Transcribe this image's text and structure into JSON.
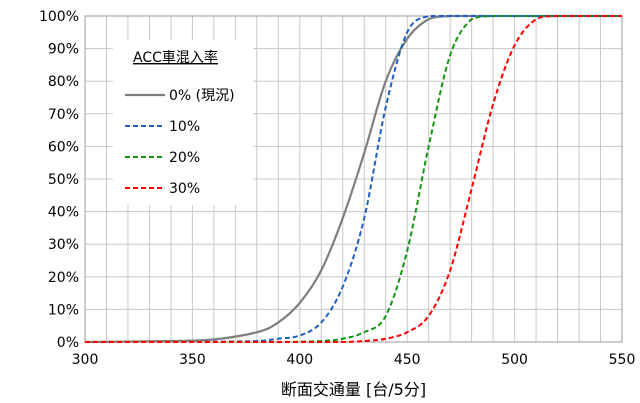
{
  "chart_data": {
    "type": "line",
    "title": "",
    "xlabel": "断面交通量 [台/5分]",
    "ylabel": "",
    "xlim": [
      300,
      550
    ],
    "ylim": [
      0,
      100
    ],
    "xticks": [
      "300",
      "350",
      "400",
      "450",
      "500",
      "550"
    ],
    "yticks": [
      "0%",
      "10%",
      "20%",
      "30%",
      "40%",
      "50%",
      "60%",
      "70%",
      "80%",
      "90%",
      "100%"
    ],
    "grid": true,
    "legend": {
      "title": "ACC車混入率",
      "position": "top-left"
    },
    "x": [
      300,
      340,
      360,
      380,
      390,
      400,
      410,
      420,
      430,
      440,
      450,
      460,
      470,
      480,
      490,
      500,
      510,
      520,
      550
    ],
    "series": [
      {
        "name": "0% (現況)",
        "color": "#7f7f7f",
        "dash": "solid",
        "values": [
          0,
          0.3,
          0.8,
          3,
          6,
          12,
          22,
          38,
          58,
          80,
          93,
          99,
          100,
          100,
          100,
          100,
          100,
          100,
          100
        ]
      },
      {
        "name": "10%",
        "color": "#1f5fbf",
        "dash": "dashed",
        "values": [
          0,
          0,
          0.1,
          0.3,
          1,
          2,
          6,
          17,
          38,
          72,
          95,
          100,
          100,
          100,
          100,
          100,
          100,
          100,
          100
        ]
      },
      {
        "name": "20%",
        "color": "#129512",
        "dash": "dashed",
        "values": [
          0,
          0,
          0,
          0,
          0,
          0.1,
          0.3,
          1,
          3,
          8,
          28,
          60,
          88,
          99,
          100,
          100,
          100,
          100,
          100
        ]
      },
      {
        "name": "30%",
        "color": "#ff0000",
        "dash": "dashed",
        "values": [
          0,
          0,
          0,
          0,
          0,
          0,
          0,
          0,
          0.3,
          1,
          3,
          8,
          22,
          47,
          73,
          91,
          99,
          100,
          100
        ]
      }
    ]
  }
}
